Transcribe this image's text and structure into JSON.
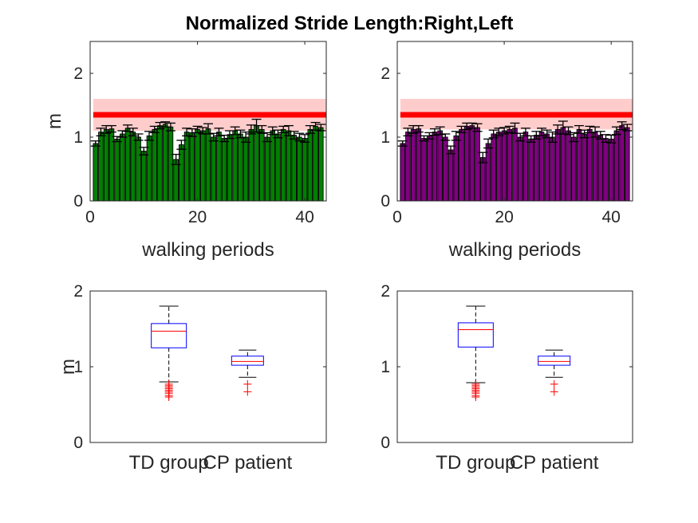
{
  "title": "Normalized Stride Length:Right,Left",
  "chart_data": [
    {
      "type": "bar",
      "panel": "top-left",
      "bar_color": "#008000",
      "xlabel": "walking periods",
      "ylabel": "m",
      "xlim": [
        0,
        44
      ],
      "ylim": [
        0,
        2.5
      ],
      "xticks": [
        0,
        20,
        40
      ],
      "yticks": [
        0,
        1,
        2
      ],
      "band": {
        "low": 1.1,
        "high": 1.6,
        "mean": 1.35,
        "color": "#ff0000"
      },
      "x": [
        1,
        2,
        3,
        4,
        5,
        6,
        7,
        8,
        9,
        10,
        11,
        12,
        13,
        14,
        15,
        16,
        17,
        18,
        19,
        20,
        21,
        22,
        23,
        24,
        25,
        26,
        27,
        28,
        29,
        30,
        31,
        32,
        33,
        34,
        35,
        36,
        37,
        38,
        39,
        40,
        41,
        42,
        43
      ],
      "values": [
        0.9,
        1.08,
        1.12,
        1.13,
        0.97,
        1.05,
        1.14,
        1.08,
        1.0,
        0.78,
        1.02,
        1.12,
        1.18,
        1.2,
        1.16,
        0.65,
        0.88,
        1.08,
        1.07,
        1.12,
        1.1,
        1.13,
        1.0,
        1.08,
        0.98,
        1.04,
        1.1,
        1.05,
        1.0,
        1.12,
        1.18,
        1.12,
        1.0,
        1.1,
        1.05,
        1.12,
        1.1,
        1.03,
        1.0,
        0.98,
        1.12,
        1.17,
        1.15
      ],
      "errors": [
        0.04,
        0.06,
        0.06,
        0.05,
        0.04,
        0.05,
        0.05,
        0.06,
        0.05,
        0.06,
        0.07,
        0.05,
        0.05,
        0.04,
        0.06,
        0.08,
        0.07,
        0.06,
        0.06,
        0.05,
        0.05,
        0.08,
        0.06,
        0.06,
        0.05,
        0.06,
        0.06,
        0.06,
        0.08,
        0.07,
        0.1,
        0.06,
        0.07,
        0.06,
        0.06,
        0.05,
        0.08,
        0.06,
        0.06,
        0.06,
        0.06,
        0.06,
        0.05
      ]
    },
    {
      "type": "bar",
      "panel": "top-right",
      "bar_color": "#800080",
      "xlabel": "walking periods",
      "ylabel": "",
      "xlim": [
        0,
        44
      ],
      "ylim": [
        0,
        2.5
      ],
      "xticks": [
        0,
        20,
        40
      ],
      "yticks": [
        0,
        1,
        2
      ],
      "band": {
        "low": 1.12,
        "high": 1.6,
        "mean": 1.35,
        "color": "#ff0000"
      },
      "x": [
        1,
        2,
        3,
        4,
        5,
        6,
        7,
        8,
        9,
        10,
        11,
        12,
        13,
        14,
        15,
        16,
        17,
        18,
        19,
        20,
        21,
        22,
        23,
        24,
        25,
        26,
        27,
        28,
        29,
        30,
        31,
        32,
        33,
        34,
        35,
        36,
        37,
        38,
        39,
        40,
        41,
        42,
        43
      ],
      "values": [
        0.9,
        1.08,
        1.12,
        1.13,
        0.98,
        1.02,
        1.08,
        1.1,
        1.0,
        0.8,
        1.02,
        1.12,
        1.17,
        1.18,
        1.15,
        0.68,
        0.9,
        1.05,
        1.08,
        1.1,
        1.12,
        1.14,
        1.0,
        1.08,
        0.97,
        1.03,
        1.08,
        1.05,
        1.0,
        1.12,
        1.15,
        1.1,
        1.0,
        1.12,
        1.05,
        1.12,
        1.08,
        1.03,
        0.98,
        0.97,
        1.1,
        1.18,
        1.15
      ],
      "errors": [
        0.04,
        0.06,
        0.06,
        0.05,
        0.04,
        0.05,
        0.05,
        0.06,
        0.05,
        0.06,
        0.07,
        0.05,
        0.05,
        0.04,
        0.06,
        0.08,
        0.07,
        0.06,
        0.06,
        0.05,
        0.05,
        0.08,
        0.06,
        0.06,
        0.05,
        0.06,
        0.06,
        0.06,
        0.08,
        0.07,
        0.1,
        0.06,
        0.07,
        0.06,
        0.06,
        0.05,
        0.08,
        0.06,
        0.06,
        0.06,
        0.06,
        0.06,
        0.05
      ]
    },
    {
      "type": "box",
      "panel": "bottom-left",
      "ylabel": "m",
      "ylim": [
        0,
        2
      ],
      "yticks": [
        0,
        1,
        2
      ],
      "categories": [
        "TD group",
        "CP patient"
      ],
      "boxes": [
        {
          "whisker_low": 0.8,
          "q1": 1.25,
          "median": 1.47,
          "q3": 1.57,
          "whisker_high": 1.8,
          "outliers": [
            0.6,
            0.62,
            0.65,
            0.67,
            0.69,
            0.71,
            0.73,
            0.75,
            0.77
          ]
        },
        {
          "whisker_low": 0.86,
          "q1": 1.02,
          "median": 1.07,
          "q3": 1.14,
          "whisker_high": 1.22,
          "outliers": [
            0.67,
            0.77
          ]
        }
      ]
    },
    {
      "type": "box",
      "panel": "bottom-right",
      "ylabel": "",
      "ylim": [
        0,
        2
      ],
      "yticks": [
        0,
        1,
        2
      ],
      "categories": [
        "TD group",
        "CP patient"
      ],
      "boxes": [
        {
          "whisker_low": 0.79,
          "q1": 1.26,
          "median": 1.49,
          "q3": 1.58,
          "whisker_high": 1.8,
          "outliers": [
            0.6,
            0.62,
            0.65,
            0.67,
            0.69,
            0.71,
            0.73,
            0.75,
            0.77
          ]
        },
        {
          "whisker_low": 0.86,
          "q1": 1.02,
          "median": 1.07,
          "q3": 1.14,
          "whisker_high": 1.22,
          "outliers": [
            0.67,
            0.77
          ]
        }
      ]
    }
  ]
}
